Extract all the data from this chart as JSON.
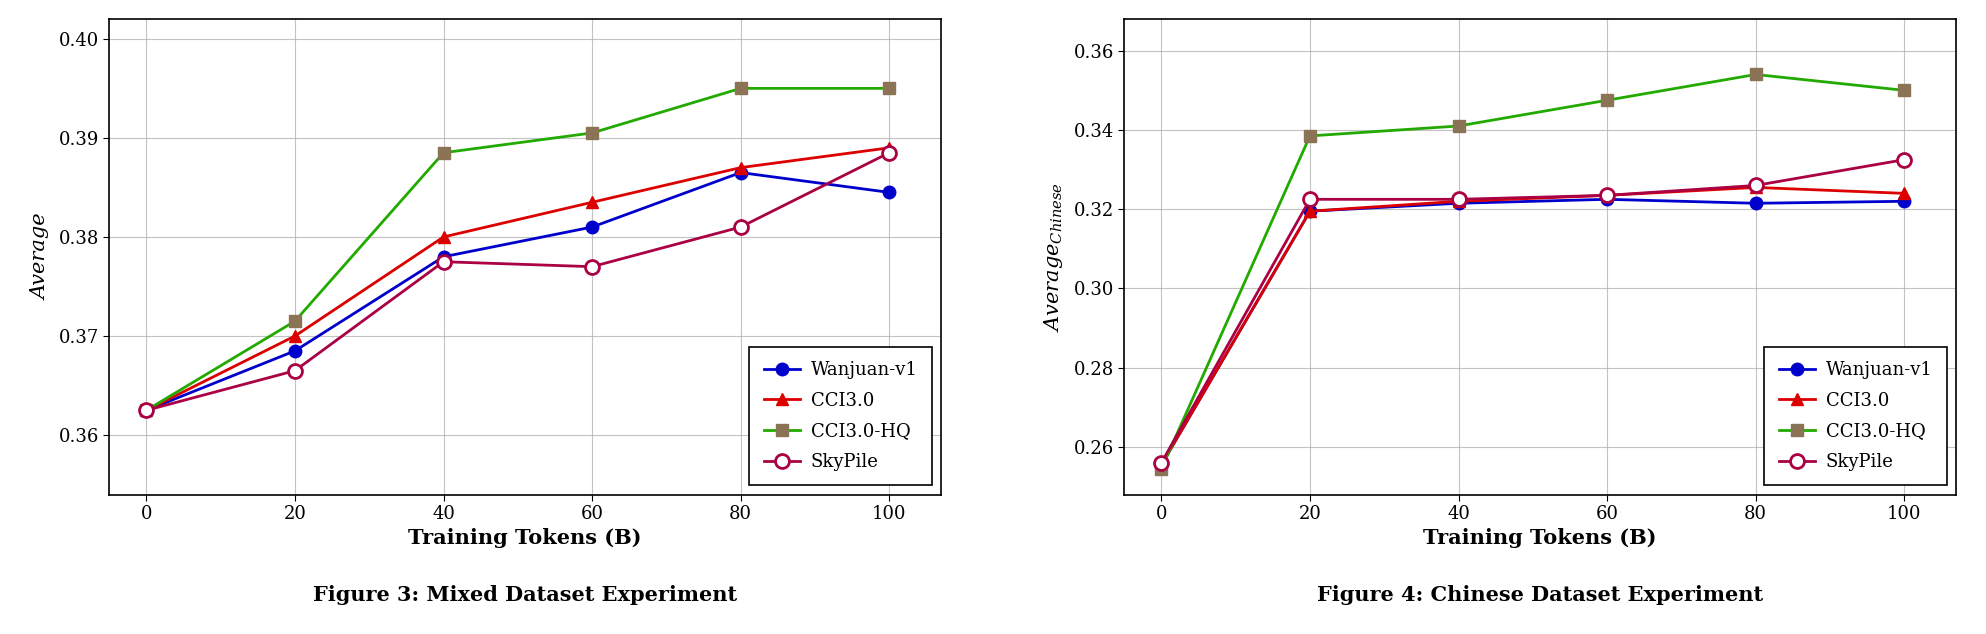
{
  "x": [
    0,
    20,
    40,
    60,
    80,
    100
  ],
  "fig3": {
    "wanjuan": [
      0.3625,
      0.3685,
      0.378,
      0.381,
      0.3865,
      0.3845
    ],
    "cci3": [
      0.3625,
      0.37,
      0.38,
      0.3835,
      0.387,
      0.389
    ],
    "cci3hq": [
      0.3625,
      0.3715,
      0.3885,
      0.3905,
      0.395,
      0.395
    ],
    "skypile": [
      0.3625,
      0.3665,
      0.3775,
      0.377,
      0.381,
      0.3885
    ],
    "ylabel": "Average",
    "ylim": [
      0.354,
      0.402
    ],
    "yticks": [
      0.36,
      0.37,
      0.38,
      0.39,
      0.4
    ],
    "title": "Figure 3: Mixed Dataset Experiment"
  },
  "fig4": {
    "wanjuan": [
      0.2555,
      0.3195,
      0.3215,
      0.3225,
      0.3215,
      0.322
    ],
    "cci3": [
      0.2555,
      0.3195,
      0.322,
      0.3235,
      0.3255,
      0.324
    ],
    "cci3hq": [
      0.2545,
      0.3385,
      0.341,
      0.3475,
      0.354,
      0.35
    ],
    "skypile": [
      0.256,
      0.3225,
      0.3225,
      0.3235,
      0.326,
      0.3325
    ],
    "ylabel": "$Average_{Chinese}$",
    "ylim": [
      0.248,
      0.368
    ],
    "yticks": [
      0.26,
      0.28,
      0.3,
      0.32,
      0.34,
      0.36
    ],
    "title": "Figure 4: Chinese Dataset Experiment"
  },
  "color_wanjuan": "#0000cc",
  "color_cci3": "#dd0000",
  "color_cci3hq_line": "#22aa00",
  "color_cci3hq_marker": "#8B7355",
  "color_skypile": "#aa0044",
  "xlabel": "Training Tokens (B)"
}
